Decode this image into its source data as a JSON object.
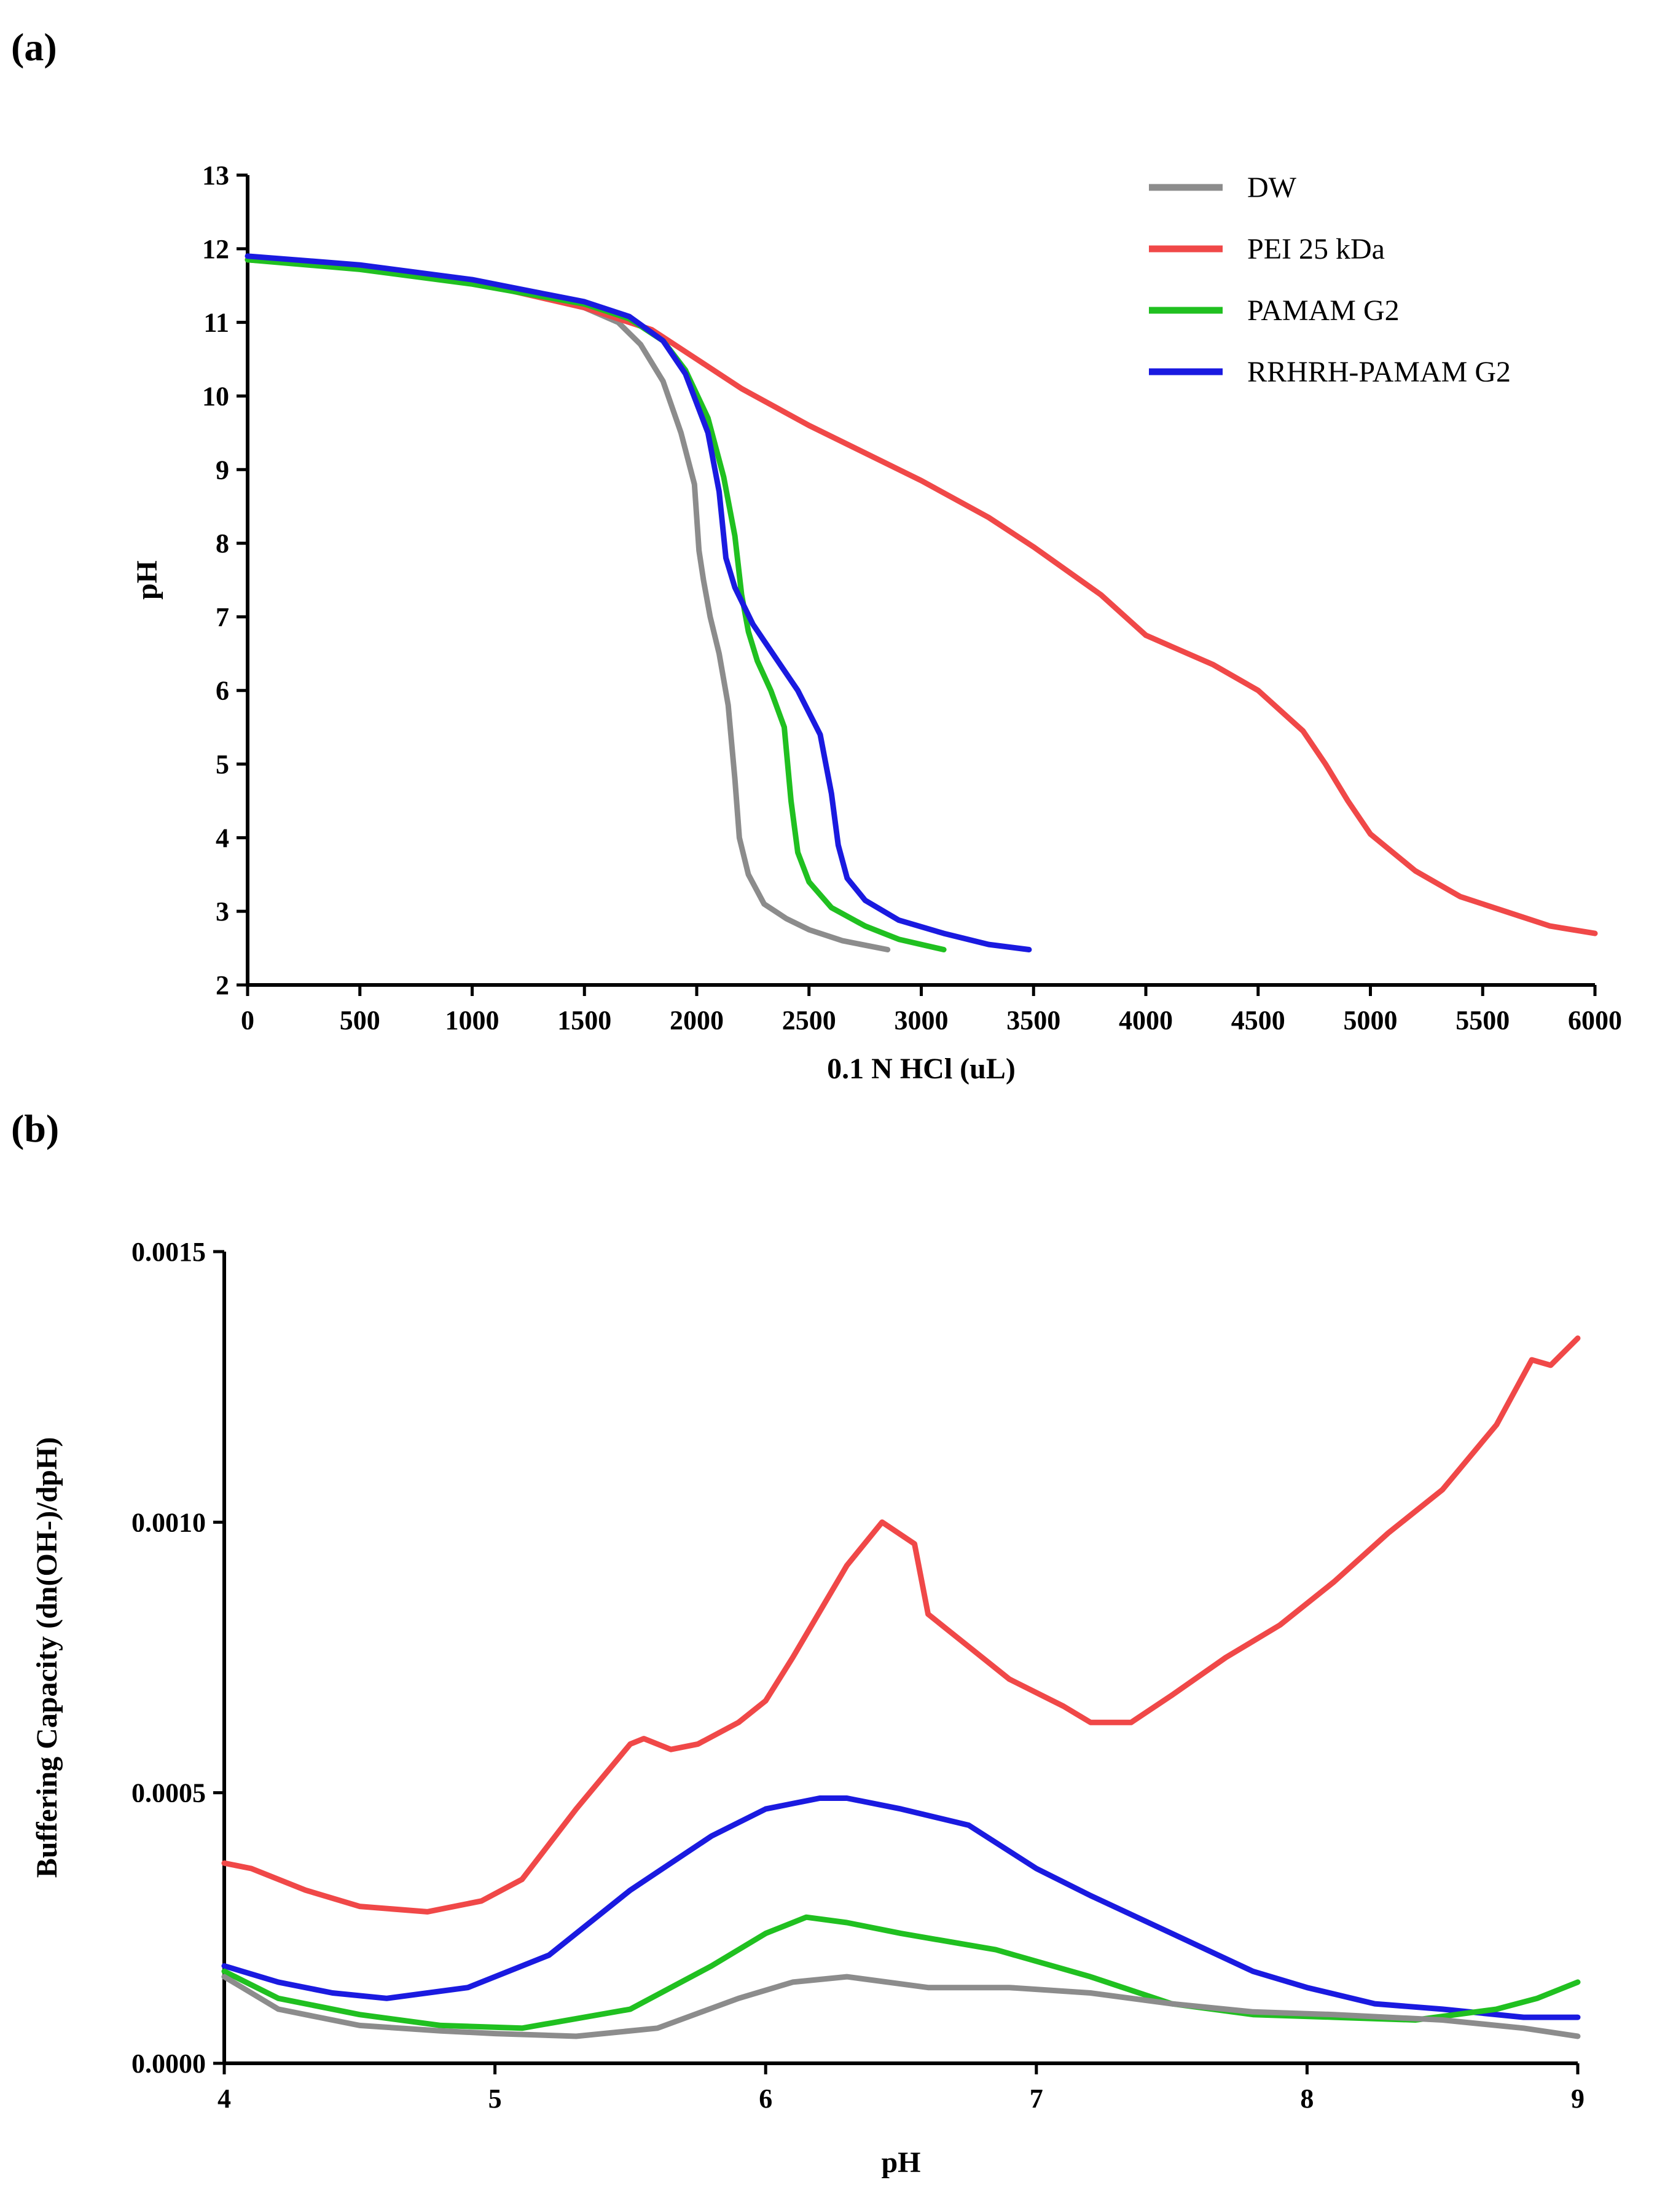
{
  "chart_data": [
    {
      "panel_label": "(a)",
      "type": "line",
      "title": "",
      "xlabel": "0.1 N HCl (uL)",
      "ylabel": "pH",
      "xlim": [
        0,
        6000
      ],
      "ylim": [
        2,
        13
      ],
      "xticks": [
        0,
        500,
        1000,
        1500,
        2000,
        2500,
        3000,
        3500,
        4000,
        4500,
        5000,
        5500,
        6000
      ],
      "yticks": [
        2,
        3,
        4,
        5,
        6,
        7,
        8,
        9,
        10,
        11,
        12,
        13
      ],
      "grid": false,
      "legend_position": "top-right",
      "series": [
        {
          "name": "DW",
          "color": "#8c8c8c",
          "x": [
            0,
            500,
            1000,
            1300,
            1500,
            1650,
            1750,
            1850,
            1930,
            1990,
            2010,
            2030,
            2060,
            2100,
            2140,
            2170,
            2190,
            2230,
            2300,
            2400,
            2500,
            2650,
            2850
          ],
          "y": [
            11.85,
            11.75,
            11.55,
            11.4,
            11.2,
            11.0,
            10.7,
            10.2,
            9.5,
            8.8,
            7.9,
            7.5,
            7.0,
            6.5,
            5.8,
            4.8,
            4.0,
            3.5,
            3.1,
            2.9,
            2.75,
            2.6,
            2.48
          ]
        },
        {
          "name": "PEI 25 kDa",
          "color": "#f04848",
          "x": [
            0,
            500,
            1000,
            1500,
            1800,
            2000,
            2200,
            2500,
            3000,
            3300,
            3500,
            3800,
            4000,
            4300,
            4500,
            4700,
            4800,
            4900,
            5000,
            5200,
            5400,
            5600,
            5800,
            6000
          ],
          "y": [
            11.85,
            11.75,
            11.55,
            11.2,
            10.9,
            10.5,
            10.1,
            9.6,
            8.85,
            8.35,
            7.95,
            7.3,
            6.75,
            6.35,
            6.0,
            5.45,
            5.0,
            4.5,
            4.05,
            3.55,
            3.2,
            3.0,
            2.8,
            2.7
          ]
        },
        {
          "name": "PAMAM G2",
          "color": "#20c020",
          "x": [
            0,
            500,
            1000,
            1500,
            1700,
            1850,
            1950,
            2050,
            2120,
            2170,
            2200,
            2230,
            2270,
            2330,
            2390,
            2420,
            2450,
            2500,
            2600,
            2750,
            2900,
            3100
          ],
          "y": [
            11.85,
            11.72,
            11.52,
            11.25,
            11.05,
            10.75,
            10.35,
            9.7,
            8.9,
            8.1,
            7.3,
            6.8,
            6.4,
            6.0,
            5.5,
            4.5,
            3.8,
            3.4,
            3.05,
            2.8,
            2.62,
            2.48
          ]
        },
        {
          "name": "RRHRH-PAMAM G2",
          "color": "#1a1ae0",
          "x": [
            0,
            500,
            1000,
            1500,
            1700,
            1850,
            1950,
            2050,
            2100,
            2130,
            2170,
            2250,
            2350,
            2450,
            2550,
            2600,
            2630,
            2670,
            2750,
            2900,
            3100,
            3300,
            3480
          ],
          "y": [
            11.9,
            11.78,
            11.58,
            11.28,
            11.08,
            10.75,
            10.3,
            9.5,
            8.7,
            7.8,
            7.4,
            6.9,
            6.45,
            6.0,
            5.4,
            4.6,
            3.9,
            3.45,
            3.15,
            2.88,
            2.7,
            2.55,
            2.48
          ]
        }
      ]
    },
    {
      "panel_label": "(b)",
      "type": "line",
      "title": "",
      "xlabel": "pH",
      "ylabel": "Buffering Capacity (dn(OH-)/dpH)",
      "xlim": [
        4,
        9
      ],
      "ylim": [
        0,
        0.0015
      ],
      "xticks": [
        4,
        5,
        6,
        7,
        8,
        9
      ],
      "yticks": [
        0,
        0.0005,
        0.001,
        0.0015
      ],
      "ytick_labels": [
        "0.0000",
        "0.0005",
        "0.0010",
        "0.0015"
      ],
      "grid": false,
      "series": [
        {
          "name": "PEI 25 kDa",
          "color": "#f04848",
          "x": [
            4.0,
            4.1,
            4.3,
            4.5,
            4.75,
            4.95,
            5.1,
            5.3,
            5.5,
            5.55,
            5.65,
            5.75,
            5.9,
            6.0,
            6.1,
            6.3,
            6.43,
            6.55,
            6.6,
            6.75,
            6.9,
            7.1,
            7.2,
            7.35,
            7.5,
            7.7,
            7.9,
            8.1,
            8.3,
            8.5,
            8.7,
            8.83,
            8.9,
            9.0
          ],
          "y": [
            0.00037,
            0.00036,
            0.00032,
            0.00029,
            0.00028,
            0.0003,
            0.00034,
            0.00047,
            0.00059,
            0.0006,
            0.00058,
            0.00059,
            0.00063,
            0.00067,
            0.00075,
            0.00092,
            0.001,
            0.00096,
            0.00083,
            0.00077,
            0.00071,
            0.00066,
            0.00063,
            0.00063,
            0.00068,
            0.00075,
            0.00081,
            0.00089,
            0.00098,
            0.00106,
            0.00118,
            0.0013,
            0.00129,
            0.00134
          ]
        },
        {
          "name": "RRHRH-PAMAM G2",
          "color": "#1a1ae0",
          "x": [
            4.0,
            4.2,
            4.4,
            4.6,
            4.9,
            5.2,
            5.5,
            5.8,
            6.0,
            6.2,
            6.3,
            6.5,
            6.75,
            7.0,
            7.2,
            7.5,
            7.8,
            8.0,
            8.25,
            8.5,
            8.8,
            9.0
          ],
          "y": [
            0.00018,
            0.00015,
            0.00013,
            0.00012,
            0.00014,
            0.0002,
            0.00032,
            0.00042,
            0.00047,
            0.00049,
            0.00049,
            0.00047,
            0.00044,
            0.00036,
            0.00031,
            0.00024,
            0.00017,
            0.00014,
            0.00011,
            0.0001,
            8.5e-05,
            8.5e-05
          ]
        },
        {
          "name": "PAMAM G2",
          "color": "#20c020",
          "x": [
            4.0,
            4.2,
            4.5,
            4.8,
            5.1,
            5.5,
            5.8,
            6.0,
            6.15,
            6.3,
            6.5,
            6.85,
            7.2,
            7.5,
            7.8,
            8.1,
            8.4,
            8.7,
            8.85,
            9.0
          ],
          "y": [
            0.00017,
            0.00012,
            9e-05,
            7e-05,
            6.5e-05,
            0.0001,
            0.00018,
            0.00024,
            0.00027,
            0.00026,
            0.00024,
            0.00021,
            0.00016,
            0.00011,
            9e-05,
            8.5e-05,
            8e-05,
            0.0001,
            0.00012,
            0.00015
          ]
        },
        {
          "name": "DW",
          "color": "#8c8c8c",
          "x": [
            4.0,
            4.2,
            4.5,
            4.8,
            5.0,
            5.3,
            5.6,
            5.9,
            6.1,
            6.3,
            6.6,
            6.9,
            7.2,
            7.5,
            7.8,
            8.1,
            8.5,
            8.8,
            9.0
          ],
          "y": [
            0.00016,
            0.0001,
            7e-05,
            6e-05,
            5.5e-05,
            5e-05,
            6.5e-05,
            0.00012,
            0.00015,
            0.00016,
            0.00014,
            0.00014,
            0.00013,
            0.00011,
            9.5e-05,
            9e-05,
            8e-05,
            6.5e-05,
            5e-05
          ]
        }
      ]
    }
  ]
}
